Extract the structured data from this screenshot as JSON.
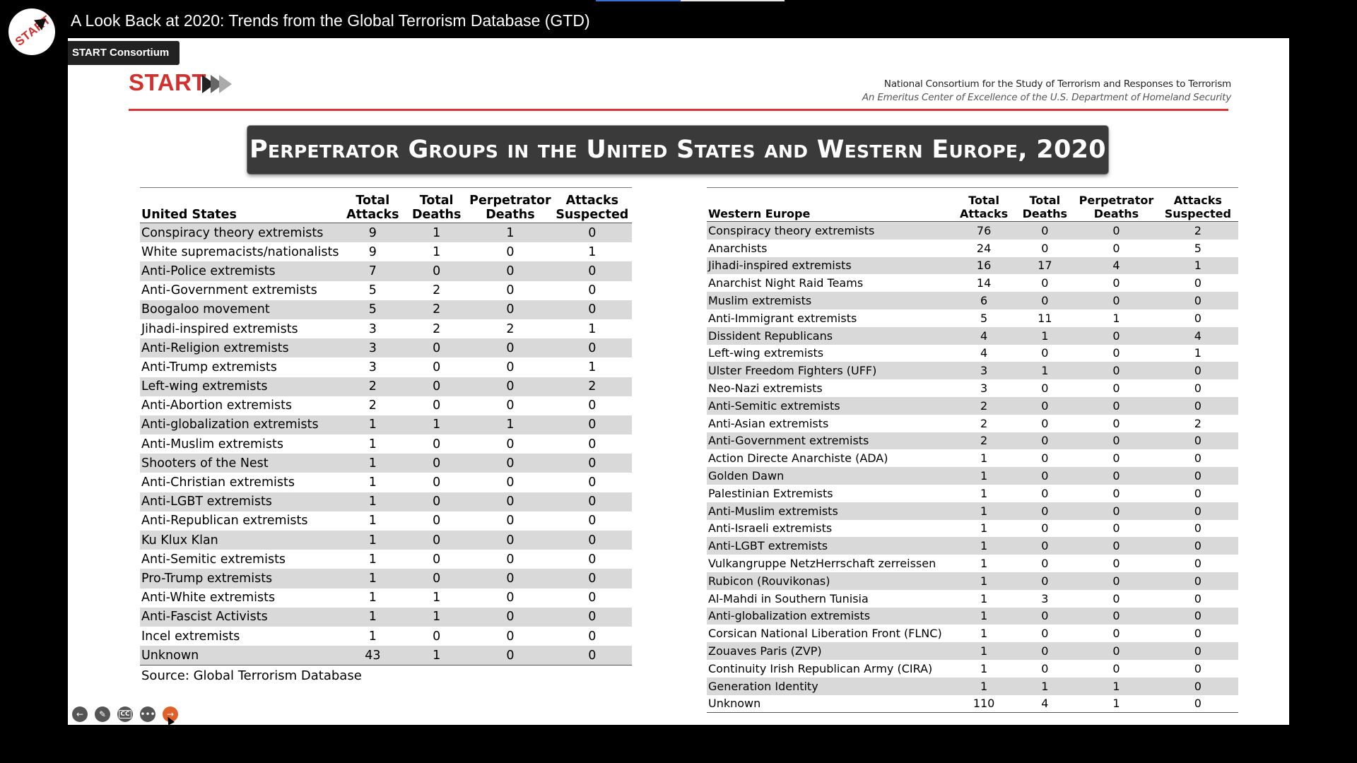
{
  "video": {
    "title": "A Look Back at 2020: Trends from the Global Terrorism Database (GTD)",
    "channel": "START Consortium",
    "avatar_text": "START",
    "progress_fraction": 0.45
  },
  "slide": {
    "logo_text": "START",
    "consortium_name": "National Consortium for the Study of Terrorism and Responses to Terrorism",
    "consortium_subtitle": "An Emeritus Center of Excellence of the U.S. Department of Homeland Security",
    "title": "Perpetrator Groups in the United States and Western Europe, 2020",
    "source_note": "Source: Global Terrorism Database",
    "accent_color": "#d9343a"
  },
  "us_table": {
    "headers": [
      "United States",
      "Total Attacks",
      "Total Deaths",
      "Perpetrator Deaths",
      "Attacks Suspected"
    ],
    "rows": [
      [
        "Conspiracy theory extremists",
        "9",
        "1",
        "1",
        "0"
      ],
      [
        "White supremacists/nationalists",
        "9",
        "1",
        "0",
        "1"
      ],
      [
        "Anti-Police extremists",
        "7",
        "0",
        "0",
        "0"
      ],
      [
        "Anti-Government extremists",
        "5",
        "2",
        "0",
        "0"
      ],
      [
        "Boogaloo movement",
        "5",
        "2",
        "0",
        "0"
      ],
      [
        "Jihadi-inspired extremists",
        "3",
        "2",
        "2",
        "1"
      ],
      [
        "Anti-Religion extremists",
        "3",
        "0",
        "0",
        "0"
      ],
      [
        "Anti-Trump extremists",
        "3",
        "0",
        "0",
        "1"
      ],
      [
        "Left-wing extremists",
        "2",
        "0",
        "0",
        "2"
      ],
      [
        "Anti-Abortion extremists",
        "2",
        "0",
        "0",
        "0"
      ],
      [
        "Anti-globalization extremists",
        "1",
        "1",
        "1",
        "0"
      ],
      [
        "Anti-Muslim extremists",
        "1",
        "0",
        "0",
        "0"
      ],
      [
        "Shooters of the Nest",
        "1",
        "0",
        "0",
        "0"
      ],
      [
        "Anti-Christian extremists",
        "1",
        "0",
        "0",
        "0"
      ],
      [
        "Anti-LGBT extremists",
        "1",
        "0",
        "0",
        "0"
      ],
      [
        "Anti-Republican extremists",
        "1",
        "0",
        "0",
        "0"
      ],
      [
        "Ku Klux Klan",
        "1",
        "0",
        "0",
        "0"
      ],
      [
        "Anti-Semitic extremists",
        "1",
        "0",
        "0",
        "0"
      ],
      [
        "Pro-Trump extremists",
        "1",
        "0",
        "0",
        "0"
      ],
      [
        "Anti-White extremists",
        "1",
        "1",
        "0",
        "0"
      ],
      [
        "Anti-Fascist Activists",
        "1",
        "1",
        "0",
        "0"
      ],
      [
        "Incel extremists",
        "1",
        "0",
        "0",
        "0"
      ],
      [
        "Unknown",
        "43",
        "1",
        "0",
        "0"
      ]
    ]
  },
  "eu_table": {
    "headers": [
      "Western Europe",
      "Total Attacks",
      "Total Deaths",
      "Perpetrator Deaths",
      "Attacks Suspected"
    ],
    "rows": [
      [
        "Conspiracy theory extremists",
        "76",
        "0",
        "0",
        "2"
      ],
      [
        "Anarchists",
        "24",
        "0",
        "0",
        "5"
      ],
      [
        "Jihadi-inspired extremists",
        "16",
        "17",
        "4",
        "1"
      ],
      [
        "Anarchist Night Raid Teams",
        "14",
        "0",
        "0",
        "0"
      ],
      [
        "Muslim extremists",
        "6",
        "0",
        "0",
        "0"
      ],
      [
        "Anti-Immigrant extremists",
        "5",
        "11",
        "1",
        "0"
      ],
      [
        "Dissident Republicans",
        "4",
        "1",
        "0",
        "4"
      ],
      [
        "Left-wing extremists",
        "4",
        "0",
        "0",
        "1"
      ],
      [
        "Ulster Freedom Fighters (UFF)",
        "3",
        "1",
        "0",
        "0"
      ],
      [
        "Neo-Nazi extremists",
        "3",
        "0",
        "0",
        "0"
      ],
      [
        "Anti-Semitic extremists",
        "2",
        "0",
        "0",
        "0"
      ],
      [
        "Anti-Asian extremists",
        "2",
        "0",
        "0",
        "2"
      ],
      [
        "Anti-Government extremists",
        "2",
        "0",
        "0",
        "0"
      ],
      [
        "Action Directe Anarchiste (ADA)",
        "1",
        "0",
        "0",
        "0"
      ],
      [
        "Golden Dawn",
        "1",
        "0",
        "0",
        "0"
      ],
      [
        "Palestinian Extremists",
        "1",
        "0",
        "0",
        "0"
      ],
      [
        "Anti-Muslim extremists",
        "1",
        "0",
        "0",
        "0"
      ],
      [
        "Anti-Israeli extremists",
        "1",
        "0",
        "0",
        "0"
      ],
      [
        "Anti-LGBT extremists",
        "1",
        "0",
        "0",
        "0"
      ],
      [
        "Vulkangruppe NetzHerrschaft zerreissen",
        "1",
        "0",
        "0",
        "0"
      ],
      [
        "Rubicon (Rouvikonas)",
        "1",
        "0",
        "0",
        "0"
      ],
      [
        "Al-Mahdi in Southern Tunisia",
        "1",
        "3",
        "0",
        "0"
      ],
      [
        "Anti-globalization extremists",
        "1",
        "0",
        "0",
        "0"
      ],
      [
        "Corsican National Liberation Front (FLNC)",
        "1",
        "0",
        "0",
        "0"
      ],
      [
        "Zouaves Paris (ZVP)",
        "1",
        "0",
        "0",
        "0"
      ],
      [
        "Continuity Irish Republican Army (CIRA)",
        "1",
        "0",
        "0",
        "0"
      ],
      [
        "Generation Identity",
        "1",
        "1",
        "1",
        "0"
      ],
      [
        "Unknown",
        "110",
        "4",
        "1",
        "0"
      ]
    ]
  },
  "player_controls": [
    {
      "name": "previous-button",
      "icon": "back-arrow-icon",
      "glyph": "←"
    },
    {
      "name": "pen-tool-button",
      "icon": "pen-icon",
      "glyph": "✎"
    },
    {
      "name": "captions-button",
      "icon": "cc-icon",
      "glyph": "CC"
    },
    {
      "name": "more-options-button",
      "icon": "more-icon",
      "glyph": "•••"
    },
    {
      "name": "next-button",
      "icon": "forward-arrow-icon",
      "glyph": "→"
    }
  ]
}
